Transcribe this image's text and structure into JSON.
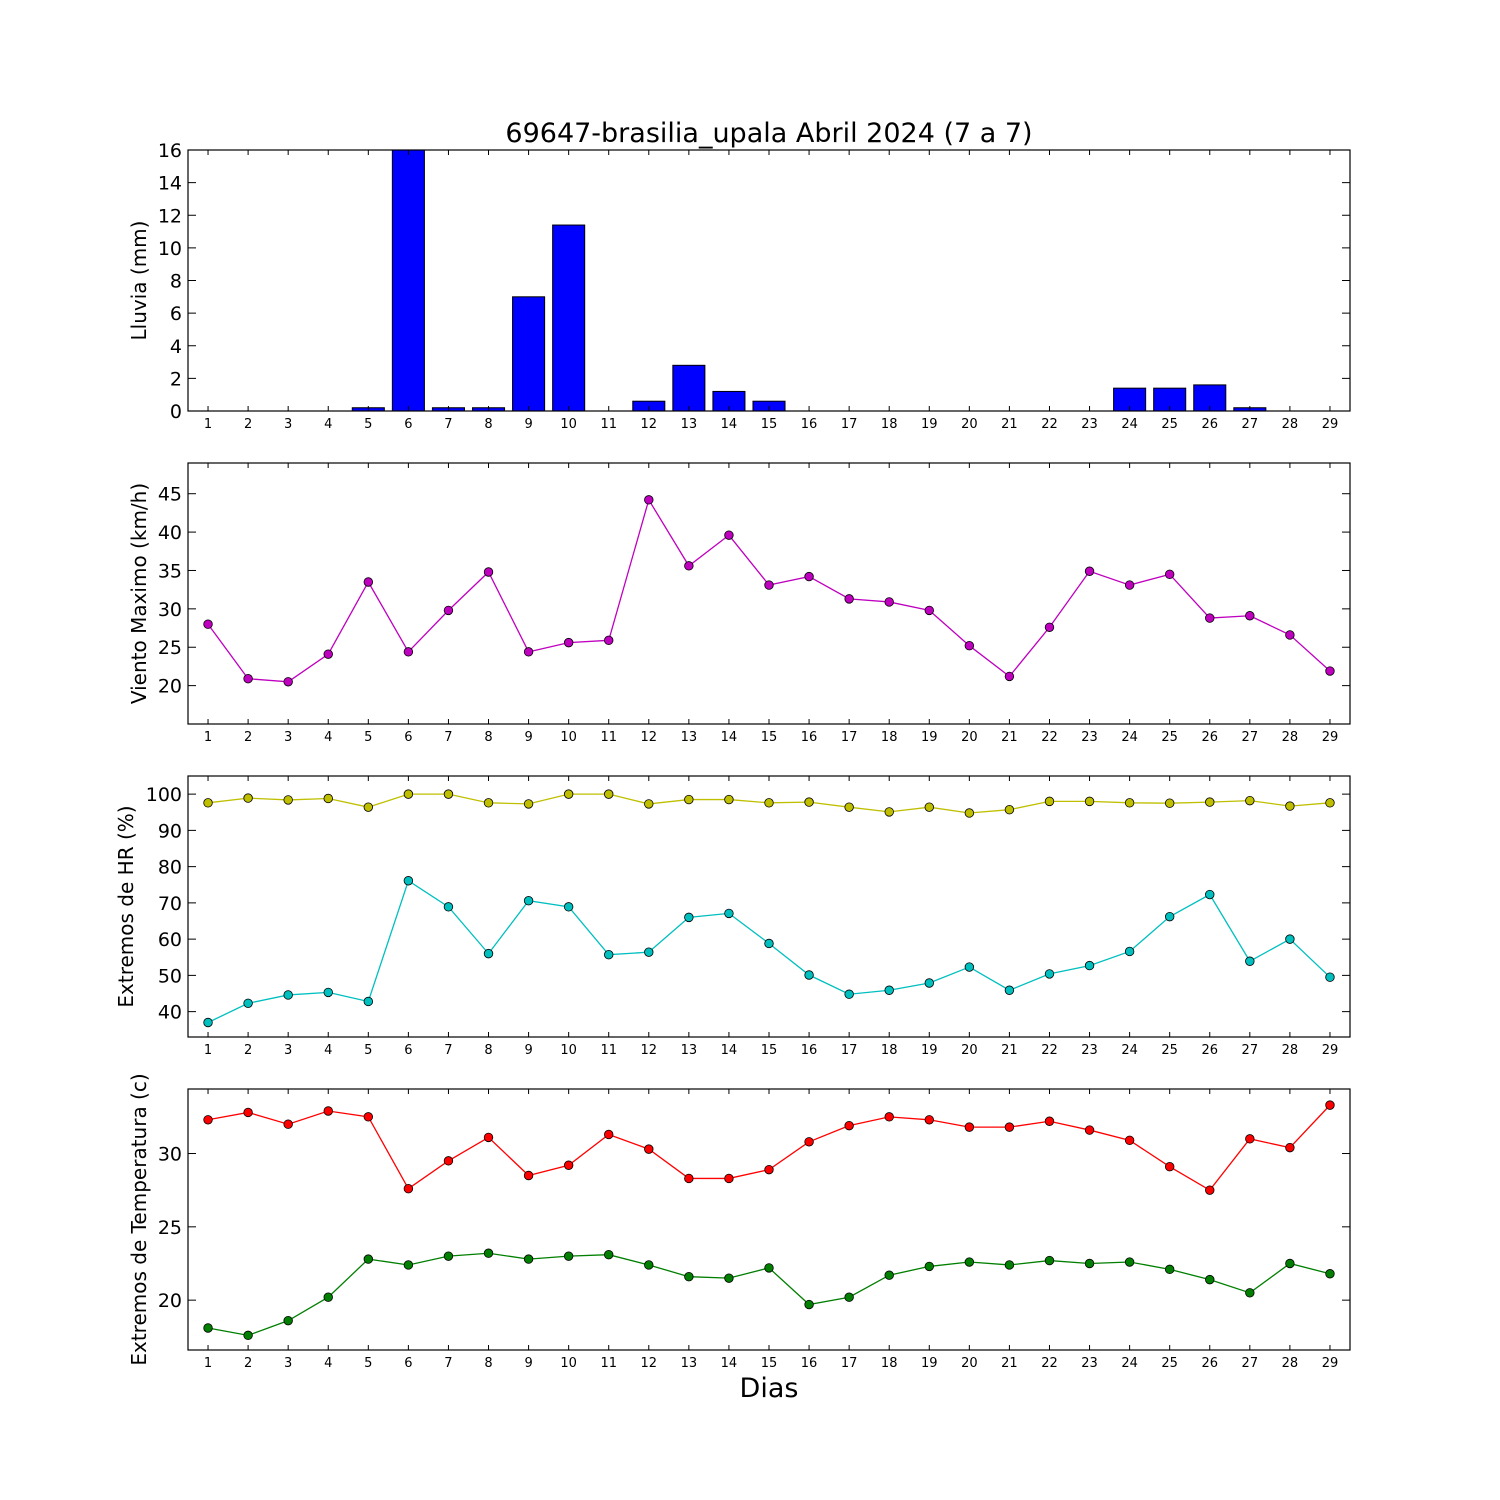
{
  "title": "69647-brasilia_upala Abril 2024  (7 a 7)",
  "xlabel": "Dias",
  "days": [
    1,
    2,
    3,
    4,
    5,
    6,
    7,
    8,
    9,
    10,
    11,
    12,
    13,
    14,
    15,
    16,
    17,
    18,
    19,
    20,
    21,
    22,
    23,
    24,
    25,
    26,
    27,
    28,
    29
  ],
  "chart_data": [
    {
      "type": "bar",
      "ylabel": "Lluvia (mm)",
      "ylim": [
        0,
        16
      ],
      "yticks": [
        0,
        2,
        4,
        6,
        8,
        10,
        12,
        14,
        16
      ],
      "color": "#0000ff",
      "values": [
        0,
        0,
        0,
        0,
        0.2,
        16,
        0.2,
        0.2,
        7.0,
        11.4,
        0,
        0.6,
        2.8,
        1.2,
        0.6,
        0,
        0,
        0,
        0,
        0,
        0,
        0,
        0,
        1.4,
        1.4,
        1.6,
        0.2,
        0,
        0
      ]
    },
    {
      "type": "line",
      "ylabel": "Viento Maximo (km/h)",
      "ylim": [
        15,
        49
      ],
      "yticks": [
        20,
        25,
        30,
        35,
        40,
        45
      ],
      "series": [
        {
          "color": "#bf00bf",
          "values": [
            28.0,
            20.9,
            20.5,
            24.1,
            33.5,
            24.4,
            29.8,
            34.8,
            24.4,
            25.6,
            25.9,
            44.2,
            35.6,
            39.6,
            33.1,
            34.2,
            31.3,
            30.9,
            29.8,
            25.2,
            21.2,
            27.6,
            34.9,
            33.1,
            34.5,
            28.8,
            29.1,
            26.6,
            21.9
          ]
        }
      ]
    },
    {
      "type": "line",
      "ylabel": "Extremos de HR (%)",
      "ylim": [
        33,
        105
      ],
      "yticks": [
        40,
        50,
        60,
        70,
        80,
        90,
        100
      ],
      "series": [
        {
          "color": "#bfbf00",
          "values": [
            97.6,
            98.9,
            98.4,
            98.8,
            96.4,
            100,
            100,
            97.6,
            97.3,
            100,
            100,
            97.3,
            98.5,
            98.5,
            97.6,
            97.8,
            96.4,
            95.1,
            96.4,
            94.8,
            95.7,
            98.0,
            98.0,
            97.6,
            97.5,
            97.8,
            98.2,
            96.7,
            97.6
          ]
        },
        {
          "color": "#00bfbf",
          "values": [
            37.0,
            42.3,
            44.6,
            45.3,
            42.8,
            76.1,
            68.9,
            56.0,
            70.6,
            68.9,
            55.7,
            56.4,
            66.0,
            67.1,
            58.8,
            50.1,
            44.8,
            45.9,
            47.9,
            52.3,
            45.9,
            50.4,
            52.7,
            56.6,
            66.2,
            72.3,
            53.9,
            60.0,
            49.5
          ]
        }
      ]
    },
    {
      "type": "line",
      "ylabel": "Extremos de Temperatura (c)",
      "ylim": [
        16.6,
        34.4
      ],
      "yticks": [
        20,
        25,
        30
      ],
      "series": [
        {
          "color": "#ff0000",
          "values": [
            32.3,
            32.8,
            32.0,
            32.9,
            32.5,
            27.6,
            29.5,
            31.1,
            28.5,
            29.2,
            31.3,
            30.3,
            28.3,
            28.3,
            28.9,
            30.8,
            31.9,
            32.5,
            32.3,
            31.8,
            31.8,
            32.2,
            31.6,
            30.9,
            29.1,
            27.5,
            31.0,
            30.4,
            33.3
          ]
        },
        {
          "color": "#007f00",
          "values": [
            18.1,
            17.6,
            18.6,
            20.2,
            22.8,
            22.4,
            23.0,
            23.2,
            22.8,
            23.0,
            23.1,
            22.4,
            21.6,
            21.5,
            22.2,
            19.7,
            20.2,
            21.7,
            22.3,
            22.6,
            22.4,
            22.7,
            22.5,
            22.6,
            22.1,
            21.4,
            20.5,
            22.5,
            21.8
          ]
        }
      ]
    }
  ]
}
